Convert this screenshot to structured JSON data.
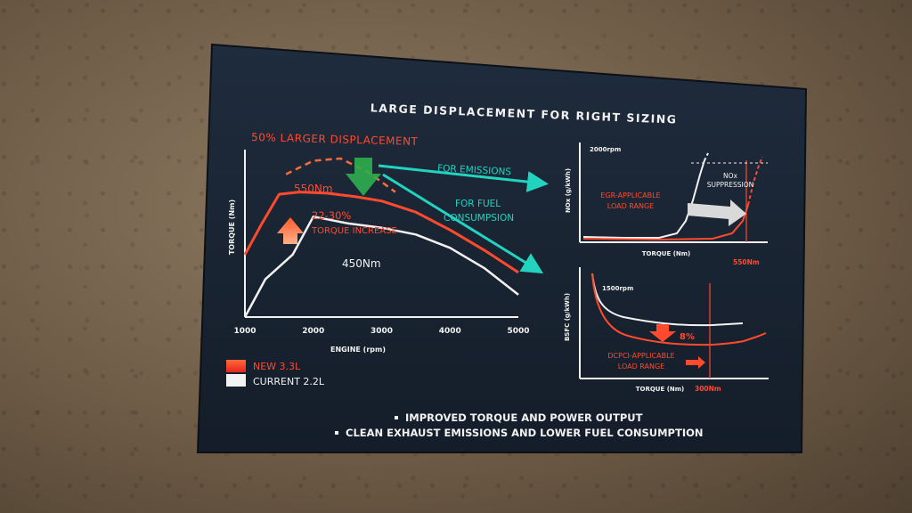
{
  "slide": {
    "title": "LARGE DISPLACEMENT FOR RIGHT SIZING",
    "headline": "50% LARGER DISPLACEMENT",
    "arrow_emissions": "FOR EMISSIONS",
    "arrow_fuel_line1": "FOR FUEL",
    "arrow_fuel_line2": "CONSUMPSION",
    "bullets": [
      "IMPROVED TORQUE AND POWER OUTPUT",
      "CLEAN EXHAUST EMISSIONS AND LOWER FUEL CONSUMPTION"
    ],
    "colors": {
      "new": "#ff4a2e",
      "current": "#f2f2f2",
      "accent": "#22d3c0",
      "arrow_green": "#2fae4f",
      "screen_bg": "#1b2636"
    }
  },
  "chart_data": [
    {
      "type": "line",
      "ylabel": "TORQUE (Nm)",
      "xlabel": "ENGINE (rpm)",
      "x_ticks": [
        "1000",
        "2000",
        "3000",
        "4000",
        "5000"
      ],
      "xlim": [
        1000,
        5000
      ],
      "annotations": {
        "new_peak": "550Nm",
        "current_peak": "450Nm",
        "increase_line1": "22-30%",
        "increase_line2": "TORQUE INCREASE"
      },
      "legend": [
        {
          "label": "NEW 3.3L",
          "color": "#ff4a2e"
        },
        {
          "label": "CURRENT 2.2L",
          "color": "#f2f2f2"
        }
      ],
      "series": [
        {
          "name": "NEW 3.3L",
          "x": [
            1000,
            1250,
            1500,
            1800,
            2200,
            2600,
            3000,
            3500,
            4000,
            4500,
            5000
          ],
          "y": [
            280,
            420,
            550,
            560,
            555,
            540,
            520,
            470,
            390,
            300,
            200
          ]
        },
        {
          "name": "CURRENT 2.2L",
          "x": [
            1000,
            1300,
            1700,
            2000,
            2500,
            3000,
            3500,
            4000,
            4500,
            5000
          ],
          "y": [
            0,
            170,
            280,
            450,
            420,
            400,
            370,
            310,
            220,
            100
          ]
        },
        {
          "x": [
            1600,
            2000,
            2400,
            2800,
            3200
          ],
          "y": [
            640,
            700,
            710,
            650,
            560
          ]
        }
      ]
    },
    {
      "type": "line",
      "ylabel": "NOx (g/kWh)",
      "xlabel": "TORQUE (Nm)",
      "subtitle": "2000rpm",
      "annotations": {
        "range_line1": "EGR-APPLICABLE",
        "range_line2": "LOAD RANGE",
        "suppression_line1": "NOx",
        "suppression_line2": "SUPPRESSION",
        "limit": "550Nm"
      }
    },
    {
      "type": "line",
      "ylabel": "BSFC (g/kWh)",
      "xlabel": "TORQUE (Nm)",
      "subtitle": "1500rpm",
      "annotations": {
        "reduction": "8%",
        "range_line1": "DCPCI-APPLICABLE",
        "range_line2": "LOAD RANGE",
        "limit": "300Nm"
      }
    }
  ]
}
